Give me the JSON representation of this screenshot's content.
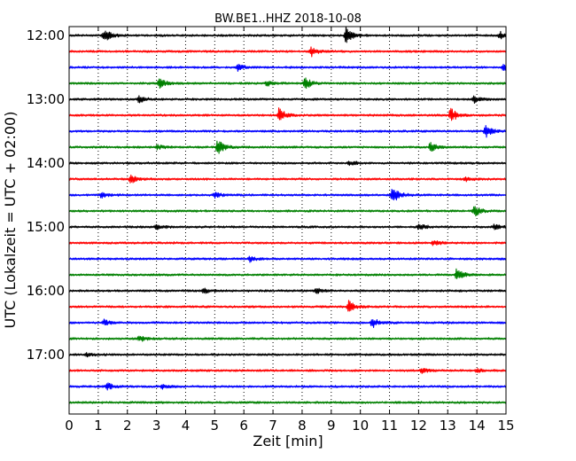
{
  "chart_data": {
    "type": "line",
    "title": "BW.BE1..HHZ 2018-10-08",
    "xlabel": "Zeit  [min]",
    "ylabel": "UTC (Lokalzeit = UTC + 02:00)",
    "xlim": [
      0,
      15
    ],
    "x_ticks": [
      "0",
      "1",
      "2",
      "3",
      "4",
      "5",
      "6",
      "7",
      "8",
      "9",
      "10",
      "11",
      "12",
      "13",
      "14",
      "15"
    ],
    "y_ticks": [
      "12:00",
      "13:00",
      "14:00",
      "15:00",
      "16:00",
      "17:00"
    ],
    "grid": "vertical dotted at each minute",
    "colors": [
      "#000000",
      "#ff0000",
      "#0000ff",
      "#008000"
    ],
    "traces": [
      {
        "start": "12:00",
        "color": "#000000",
        "events": [
          [
            1.2,
            8
          ],
          [
            9.5,
            10
          ],
          [
            14.8,
            4
          ]
        ]
      },
      {
        "start": "12:15",
        "color": "#ff0000",
        "events": [
          [
            8.3,
            6
          ]
        ]
      },
      {
        "start": "12:30",
        "color": "#0000ff",
        "events": [
          [
            5.8,
            4
          ],
          [
            14.9,
            3
          ]
        ]
      },
      {
        "start": "12:45",
        "color": "#008000",
        "events": [
          [
            3.1,
            6
          ],
          [
            8.1,
            7
          ],
          [
            6.8,
            3
          ]
        ]
      },
      {
        "start": "13:00",
        "color": "#000000",
        "events": [
          [
            2.4,
            4
          ],
          [
            13.9,
            4
          ]
        ]
      },
      {
        "start": "13:15",
        "color": "#ff0000",
        "events": [
          [
            7.2,
            8
          ],
          [
            13.1,
            8
          ]
        ]
      },
      {
        "start": "13:30",
        "color": "#0000ff",
        "events": [
          [
            14.3,
            7
          ]
        ]
      },
      {
        "start": "13:45",
        "color": "#008000",
        "events": [
          [
            5.1,
            9
          ],
          [
            12.4,
            5
          ],
          [
            3.0,
            3
          ]
        ]
      },
      {
        "start": "14:00",
        "color": "#000000",
        "events": [
          [
            9.6,
            3
          ]
        ]
      },
      {
        "start": "14:15",
        "color": "#ff0000",
        "events": [
          [
            2.1,
            5
          ],
          [
            13.6,
            3
          ]
        ]
      },
      {
        "start": "14:30",
        "color": "#0000ff",
        "events": [
          [
            11.1,
            10
          ],
          [
            1.1,
            3
          ],
          [
            5.0,
            3
          ]
        ]
      },
      {
        "start": "14:45",
        "color": "#008000",
        "events": [
          [
            13.9,
            7
          ]
        ]
      },
      {
        "start": "15:00",
        "color": "#000000",
        "events": [
          [
            12.0,
            4
          ],
          [
            14.6,
            3
          ],
          [
            3.0,
            3
          ]
        ]
      },
      {
        "start": "15:15",
        "color": "#ff0000",
        "events": [
          [
            12.5,
            3
          ]
        ]
      },
      {
        "start": "15:30",
        "color": "#0000ff",
        "events": [
          [
            6.2,
            3
          ]
        ]
      },
      {
        "start": "15:45",
        "color": "#008000",
        "events": [
          [
            13.3,
            7
          ]
        ]
      },
      {
        "start": "16:00",
        "color": "#000000",
        "events": [
          [
            4.6,
            3
          ],
          [
            8.5,
            3
          ]
        ]
      },
      {
        "start": "16:15",
        "color": "#ff0000",
        "events": [
          [
            9.6,
            7
          ]
        ]
      },
      {
        "start": "16:30",
        "color": "#0000ff",
        "events": [
          [
            10.4,
            6
          ],
          [
            1.2,
            3
          ]
        ]
      },
      {
        "start": "16:45",
        "color": "#008000",
        "events": [
          [
            2.4,
            4
          ]
        ]
      },
      {
        "start": "17:00",
        "color": "#000000",
        "events": [
          [
            0.6,
            2
          ]
        ]
      },
      {
        "start": "17:15",
        "color": "#ff0000",
        "events": [
          [
            12.1,
            3
          ],
          [
            14.0,
            2
          ]
        ]
      },
      {
        "start": "17:30",
        "color": "#0000ff",
        "events": [
          [
            1.3,
            4
          ],
          [
            3.2,
            3
          ]
        ]
      },
      {
        "start": "17:45",
        "color": "#008000",
        "events": []
      }
    ]
  }
}
